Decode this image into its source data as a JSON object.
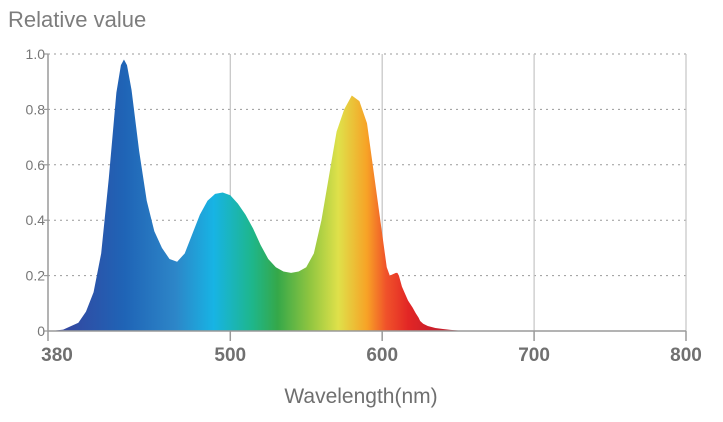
{
  "chart_data": {
    "type": "area",
    "ylabel": "Relative value",
    "xlabel": "Wavelength(nm)",
    "xlim": [
      380,
      800
    ],
    "ylim": [
      0,
      1.0
    ],
    "x_ticks": [
      380,
      500,
      600,
      700,
      800
    ],
    "x_tick_labels": [
      "380",
      "500",
      "600",
      "700",
      "800"
    ],
    "y_ticks": [
      0,
      0.2,
      0.4,
      0.6,
      0.8,
      1.0
    ],
    "y_tick_labels": [
      "0",
      "0.2",
      "0.4",
      "0.6",
      "0.8",
      "1.0"
    ],
    "grid": true,
    "fill": "spectral-gradient",
    "series": [
      {
        "x": [
          382,
          390,
          400,
          405,
          410,
          415,
          420,
          425,
          428,
          430,
          432,
          435,
          440,
          445,
          450,
          455,
          460,
          465,
          470,
          475,
          480,
          485,
          490,
          495,
          500,
          505,
          510,
          515,
          520,
          525,
          530,
          535,
          540,
          545,
          550,
          555,
          560,
          565,
          570,
          575,
          580,
          585,
          590,
          595,
          600,
          603,
          605,
          607,
          609,
          610,
          611,
          612,
          613,
          615,
          617,
          620,
          622,
          624,
          625,
          627,
          630,
          635,
          640,
          645,
          650,
          660,
          670,
          680,
          690,
          700,
          720,
          750,
          800
        ],
        "y": [
          0.0,
          0.005,
          0.03,
          0.07,
          0.14,
          0.28,
          0.55,
          0.86,
          0.96,
          0.98,
          0.96,
          0.87,
          0.65,
          0.47,
          0.36,
          0.3,
          0.26,
          0.25,
          0.28,
          0.35,
          0.42,
          0.47,
          0.495,
          0.5,
          0.49,
          0.46,
          0.42,
          0.37,
          0.31,
          0.26,
          0.23,
          0.215,
          0.21,
          0.215,
          0.23,
          0.28,
          0.4,
          0.56,
          0.72,
          0.8,
          0.85,
          0.83,
          0.75,
          0.55,
          0.35,
          0.23,
          0.2,
          0.205,
          0.21,
          0.21,
          0.2,
          0.18,
          0.16,
          0.135,
          0.11,
          0.085,
          0.065,
          0.048,
          0.036,
          0.026,
          0.018,
          0.011,
          0.007,
          0.004,
          0.002,
          0.001,
          0.0,
          0.0,
          0.0,
          0.0,
          0.0,
          0.0,
          0.0
        ]
      }
    ],
    "gradient_colors": [
      "#3a3f9a",
      "#1f64b6",
      "#2d86c8",
      "#17b4e4",
      "#1eb68b",
      "#35a849",
      "#8fc540",
      "#dfe14a",
      "#f7a226",
      "#f0522a",
      "#e22625",
      "#cc1f2a",
      "#b51f2d",
      "#9e1e2f"
    ]
  }
}
